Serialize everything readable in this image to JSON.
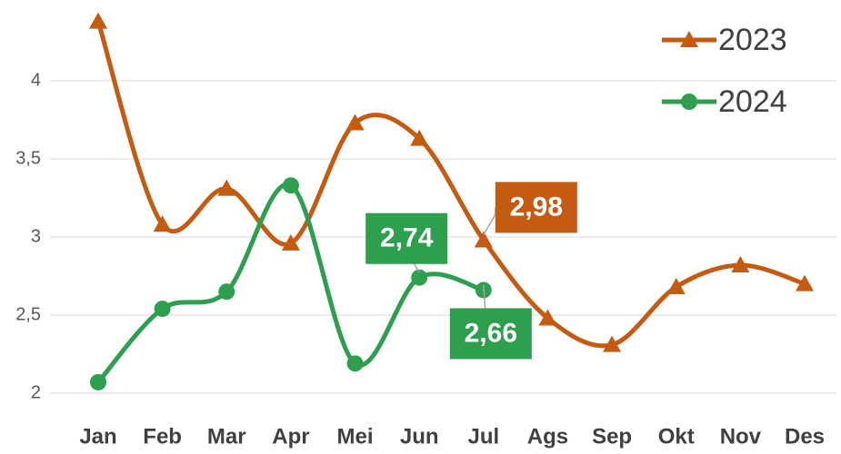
{
  "chart_data": {
    "type": "line",
    "categories": [
      "Jan",
      "Feb",
      "Mar",
      "Apr",
      "Mei",
      "Jun",
      "Jul",
      "Ags",
      "Sep",
      "Okt",
      "Nov",
      "Des"
    ],
    "series": [
      {
        "name": "2023",
        "color": "#c55a11",
        "marker": "triangle",
        "values": [
          4.38,
          3.08,
          3.31,
          2.96,
          3.73,
          3.63,
          2.98,
          2.48,
          2.31,
          2.68,
          2.82,
          2.7
        ],
        "value_labels": [
          null,
          null,
          null,
          null,
          null,
          null,
          "2,98",
          null,
          null,
          null,
          null,
          null
        ]
      },
      {
        "name": "2024",
        "color": "#2e9e4f",
        "marker": "circle",
        "values": [
          2.07,
          2.54,
          2.65,
          3.33,
          2.19,
          2.74,
          2.66,
          null,
          null,
          null,
          null,
          null
        ],
        "value_labels": [
          null,
          null,
          null,
          null,
          null,
          "2,74",
          "2,66",
          null,
          null,
          null,
          null,
          null
        ]
      }
    ],
    "ylim": [
      2,
      4.5
    ],
    "yticks": [
      2,
      {
        "value": 2.5,
        "label": "2,5"
      },
      3,
      {
        "value": 3.5,
        "label": "3,5"
      },
      4
    ],
    "grid": true,
    "legend": "top-right"
  }
}
